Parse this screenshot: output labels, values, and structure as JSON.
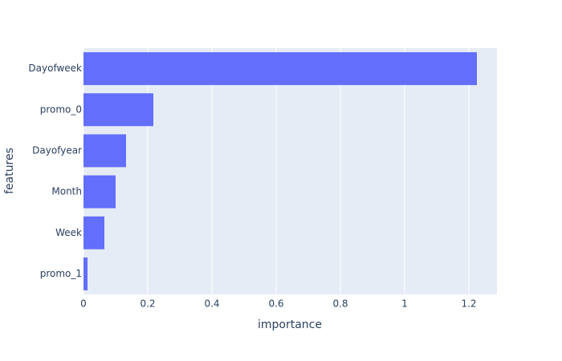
{
  "chart_data": {
    "type": "barh",
    "categories": [
      "Dayofweek",
      "promo_0",
      "Dayofyear",
      "Month",
      "Week",
      "promo_1"
    ],
    "values": [
      1.225,
      0.2175,
      0.1325,
      0.1,
      0.065,
      0.0125
    ],
    "color": "#636efa",
    "x_label": "importance",
    "y_label": "features",
    "xlim": [
      0,
      1.2875
    ],
    "xticks": [
      0,
      0.2,
      0.4,
      0.6,
      0.8,
      1,
      1.2
    ],
    "grid": true
  }
}
